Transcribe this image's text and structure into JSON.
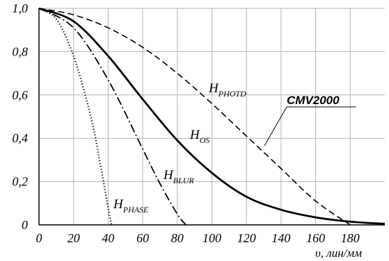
{
  "chart_data": {
    "type": "line",
    "xlabel": "υ, лин/мм",
    "ylabel": "",
    "xlim": [
      0,
      200
    ],
    "ylim": [
      0,
      1.0
    ],
    "grid": true,
    "x_ticks": [
      "0",
      "20",
      "40",
      "60",
      "80",
      "100",
      "120",
      "140",
      "160",
      "180"
    ],
    "y_ticks": [
      "0",
      "0,2",
      "0,4",
      "0,6",
      "0,8",
      "1,0"
    ],
    "series": [
      {
        "name": "H_PHOTD",
        "style": "dashed",
        "x": [
          0,
          20,
          40,
          60,
          80,
          100,
          120,
          140,
          160,
          180
        ],
        "y": [
          1.0,
          0.97,
          0.91,
          0.82,
          0.7,
          0.56,
          0.41,
          0.26,
          0.11,
          0.0
        ]
      },
      {
        "name": "H_OS",
        "style": "solid",
        "x": [
          0,
          20,
          40,
          60,
          80,
          100,
          120,
          140,
          160,
          180,
          200
        ],
        "y": [
          1.0,
          0.94,
          0.78,
          0.58,
          0.39,
          0.24,
          0.13,
          0.07,
          0.035,
          0.015,
          0.005
        ]
      },
      {
        "name": "H_BLUR",
        "style": "dash-dot",
        "x": [
          0,
          20,
          40,
          60,
          70,
          80,
          85
        ],
        "y": [
          1.0,
          0.91,
          0.67,
          0.35,
          0.19,
          0.05,
          0.0
        ]
      },
      {
        "name": "H_PHASE",
        "style": "dotted",
        "x": [
          0,
          10,
          20,
          30,
          35,
          40,
          42
        ],
        "y": [
          1.0,
          0.95,
          0.78,
          0.5,
          0.3,
          0.08,
          0.0
        ]
      }
    ],
    "labels": [
      {
        "main": "H",
        "sub": "PHOTD",
        "series": "H_PHOTD"
      },
      {
        "main": "H",
        "sub": "OS",
        "series": "H_OS"
      },
      {
        "main": "H",
        "sub": "BLUR",
        "series": "H_BLUR"
      },
      {
        "main": "H",
        "sub": "PHASE",
        "series": "H_PHASE"
      }
    ],
    "annotations": [
      {
        "text": "CMV2000"
      }
    ]
  }
}
